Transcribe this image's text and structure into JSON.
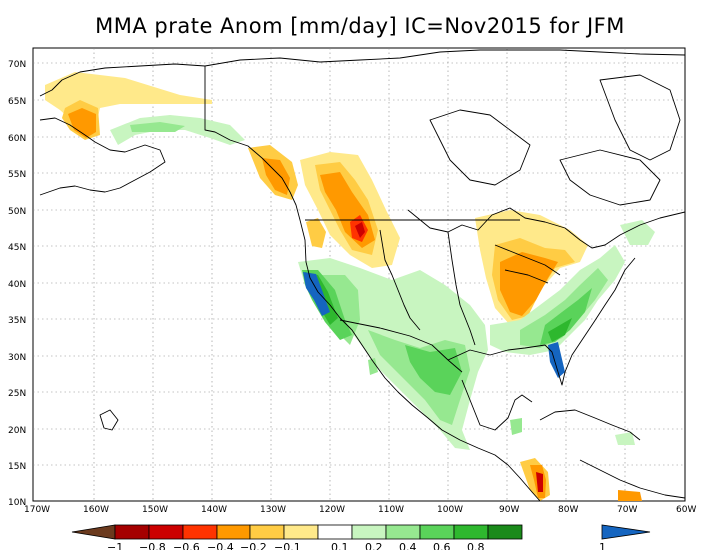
{
  "title": "MMA prate Anom [mm/day] IC=Nov2015 for JFM",
  "lon_labels": [
    "170W",
    "160W",
    "150W",
    "140W",
    "130W",
    "120W",
    "110W",
    "100W",
    "90W",
    "80W",
    "70W",
    "60W"
  ],
  "lat_labels": [
    "70N",
    "65N",
    "60N",
    "55N",
    "50N",
    "45N",
    "40N",
    "35N",
    "30N",
    "25N",
    "20N",
    "15N",
    "10N"
  ],
  "colorbar": {
    "labels": [
      "−1",
      "−0.8",
      "−0.6",
      "−0.4",
      "−0.2",
      "−0.1",
      "0.1",
      "0.2",
      "0.4",
      "0.6",
      "0.8",
      "1"
    ],
    "colors": [
      "#6b3a1e",
      "#a50000",
      "#cc0000",
      "#ff3300",
      "#ff9900",
      "#ffcc44",
      "#ffe98a",
      "#ffffff",
      "#c8f5c0",
      "#96e890",
      "#5ad35a",
      "#2eb82e",
      "#1a8a1a",
      "#1565c0"
    ]
  }
}
